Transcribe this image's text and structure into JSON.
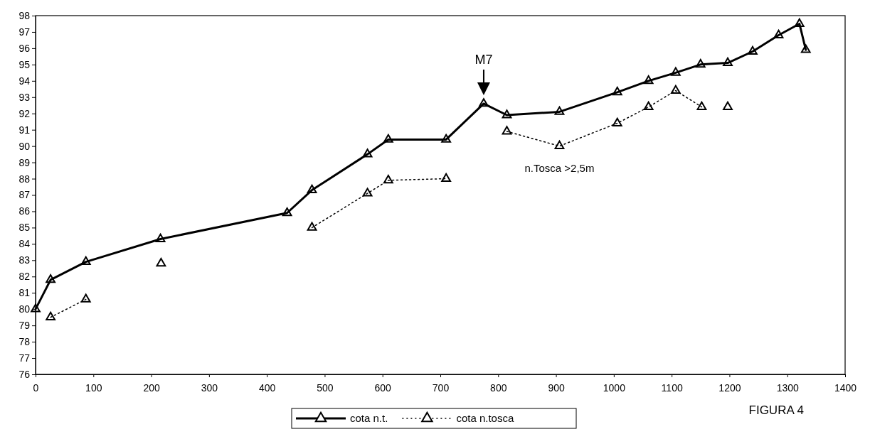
{
  "chart_data": {
    "type": "line",
    "xlim": [
      0,
      1400
    ],
    "xticks": [
      0,
      100,
      200,
      300,
      400,
      500,
      600,
      700,
      800,
      900,
      1000,
      1100,
      1200,
      1300,
      1400
    ],
    "ylim": [
      76,
      98
    ],
    "yticks": [
      76,
      77,
      78,
      79,
      80,
      81,
      82,
      83,
      84,
      85,
      86,
      87,
      88,
      89,
      90,
      91,
      92,
      93,
      94,
      95,
      96,
      97,
      98
    ],
    "grid": false,
    "legend": "bottom",
    "marker": "triangle",
    "series": [
      {
        "name": "cota n.t.",
        "color": "#000000",
        "line_style": "solid",
        "x": [
          0,
          26,
          87,
          216,
          435,
          478,
          574,
          610,
          710,
          775,
          815,
          906,
          1006,
          1060,
          1107,
          1150,
          1197,
          1240,
          1285,
          1321,
          1332
        ],
        "values": [
          80.0,
          81.8,
          82.9,
          84.3,
          85.9,
          87.3,
          89.5,
          90.4,
          90.4,
          92.6,
          91.9,
          92.1,
          93.3,
          94.0,
          94.5,
          95.0,
          95.1,
          95.8,
          96.8,
          97.5,
          95.9
        ]
      },
      {
        "name": "cota n.tosca",
        "color": "#000000",
        "line_style": "dotted",
        "x": [
          26,
          87,
          150,
          217,
          350,
          478,
          574,
          610,
          710,
          760,
          815,
          906,
          1006,
          1060,
          1107,
          1152,
          1175,
          1197
        ],
        "values": [
          79.5,
          80.6,
          null,
          82.8,
          null,
          85.0,
          87.1,
          87.9,
          88.0,
          null,
          90.9,
          90.0,
          91.4,
          92.4,
          93.4,
          92.4,
          null,
          92.4
        ]
      }
    ],
    "annotations": [
      {
        "text": "M7",
        "x": 775,
        "y": 92.6
      },
      {
        "text": "n.Tosca >2,5m",
        "x": 906,
        "y": 90.0
      },
      "FIGURA 4"
    ]
  }
}
